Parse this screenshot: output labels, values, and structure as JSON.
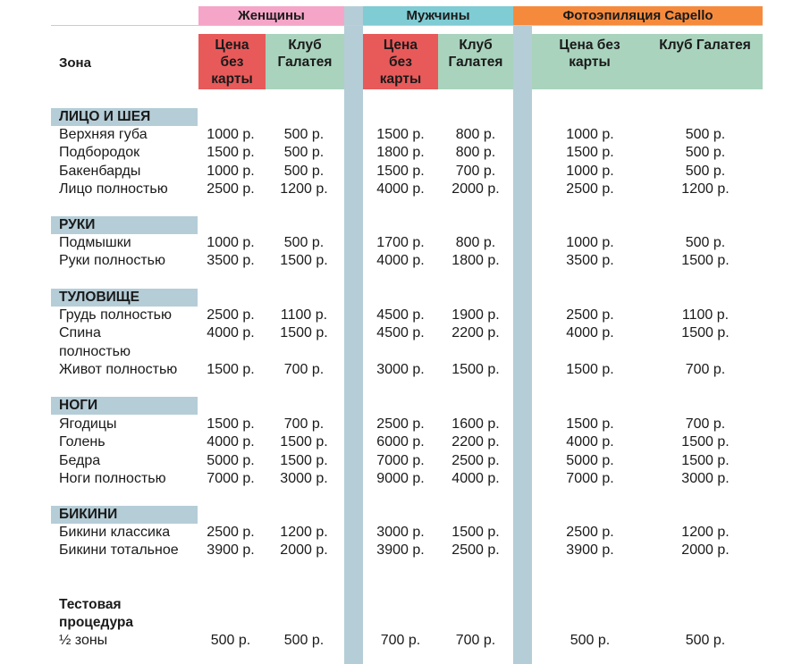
{
  "groups": [
    {
      "name": "Женщины",
      "color": "#f5a5c8"
    },
    {
      "name": "Мужчины",
      "color": "#7fccd4"
    },
    {
      "name": "Фотоэпиляция Capello",
      "color": "#f68a3c"
    }
  ],
  "headers": {
    "zone": "Зона",
    "w_price": "Цена\nбез\nкарты",
    "w_club": "Клуб\nГалатея",
    "m_price": "Цена\nбез\nкарты",
    "m_club": "Клуб\nГалатея",
    "f_price": "Цена без\nкарты",
    "f_club": "Клуб Галатея"
  },
  "sections": [
    {
      "title": "ЛИЦО И ШЕЯ",
      "rows": [
        {
          "zone": "Верхняя губа",
          "p": [
            "1000 р.",
            "500 р.",
            "1500 р.",
            "800 р.",
            "1000 р.",
            "500 р."
          ]
        },
        {
          "zone": "Подбородок",
          "p": [
            "1500 р.",
            "500 р.",
            "1800 р.",
            "800 р.",
            "1500 р.",
            "500 р."
          ]
        },
        {
          "zone": "Бакенбарды",
          "p": [
            "1000 р.",
            "500 р.",
            "1500 р.",
            "700 р.",
            "1000 р.",
            "500 р."
          ]
        },
        {
          "zone": "Лицо полностью",
          "p": [
            "2500 р.",
            "1200 р.",
            "4000 р.",
            "2000 р.",
            "2500 р.",
            "1200 р."
          ]
        }
      ]
    },
    {
      "title": "РУКИ",
      "rows": [
        {
          "zone": "Подмышки",
          "p": [
            "1000 р.",
            "500 р.",
            "1700 р.",
            "800 р.",
            "1000 р.",
            "500 р."
          ]
        },
        {
          "zone": "Руки полностью",
          "p": [
            "3500 р.",
            "1500 р.",
            "4000 р.",
            "1800 р.",
            "3500 р.",
            "1500 р."
          ]
        }
      ]
    },
    {
      "title": "ТУЛОВИЩЕ",
      "rows": [
        {
          "zone": "Грудь полностью",
          "p": [
            "2500 р.",
            "1100 р.",
            "4500 р.",
            "1900 р.",
            "2500 р.",
            "1100 р."
          ]
        },
        {
          "zone": "Спина",
          "p": [
            "4000 р.",
            "1500 р.",
            "4500 р.",
            "2200 р.",
            "4000 р.",
            "1500 р."
          ]
        },
        {
          "zone": "полностью",
          "p": [
            "",
            "",
            "",
            "",
            "",
            ""
          ]
        },
        {
          "zone": "Живот полностью",
          "p": [
            "1500 р.",
            "700 р.",
            "3000 р.",
            "1500 р.",
            "1500 р.",
            "700 р."
          ]
        }
      ]
    },
    {
      "title": "НОГИ",
      "rows": [
        {
          "zone": "Ягодицы",
          "p": [
            "1500 р.",
            "700 р.",
            "2500 р.",
            "1600 р.",
            "1500 р.",
            "700 р."
          ]
        },
        {
          "zone": "Голень",
          "p": [
            "4000 р.",
            "1500 р.",
            "6000 р.",
            "2200 р.",
            "4000 р.",
            "1500 р."
          ]
        },
        {
          "zone": "Бедра",
          "p": [
            "5000 р.",
            "1500 р.",
            "7000 р.",
            "2500 р.",
            "5000 р.",
            "1500 р."
          ]
        },
        {
          "zone": "Ноги полностью",
          "p": [
            "7000 р.",
            "3000 р.",
            "9000 р.",
            "4000 р.",
            "7000 р.",
            "3000 р."
          ]
        }
      ]
    },
    {
      "title": "БИКИНИ",
      "rows": [
        {
          "zone": "Бикини классика",
          "p": [
            "2500 р.",
            "1200 р.",
            "3000 р.",
            "1500 р.",
            "2500 р.",
            "1200 р."
          ]
        },
        {
          "zone": "Бикини тотальное",
          "p": [
            "3900 р.",
            "2000 р.",
            "3900 р.",
            "2500 р.",
            "3900 р.",
            "2000 р."
          ]
        }
      ]
    }
  ],
  "test": {
    "line1": "Тестовая",
    "line2": "процедура",
    "zone": "½ зоны",
    "p": [
      "500 р.",
      "500 р.",
      "700 р.",
      "700 р.",
      "500 р.",
      "500 р."
    ]
  }
}
